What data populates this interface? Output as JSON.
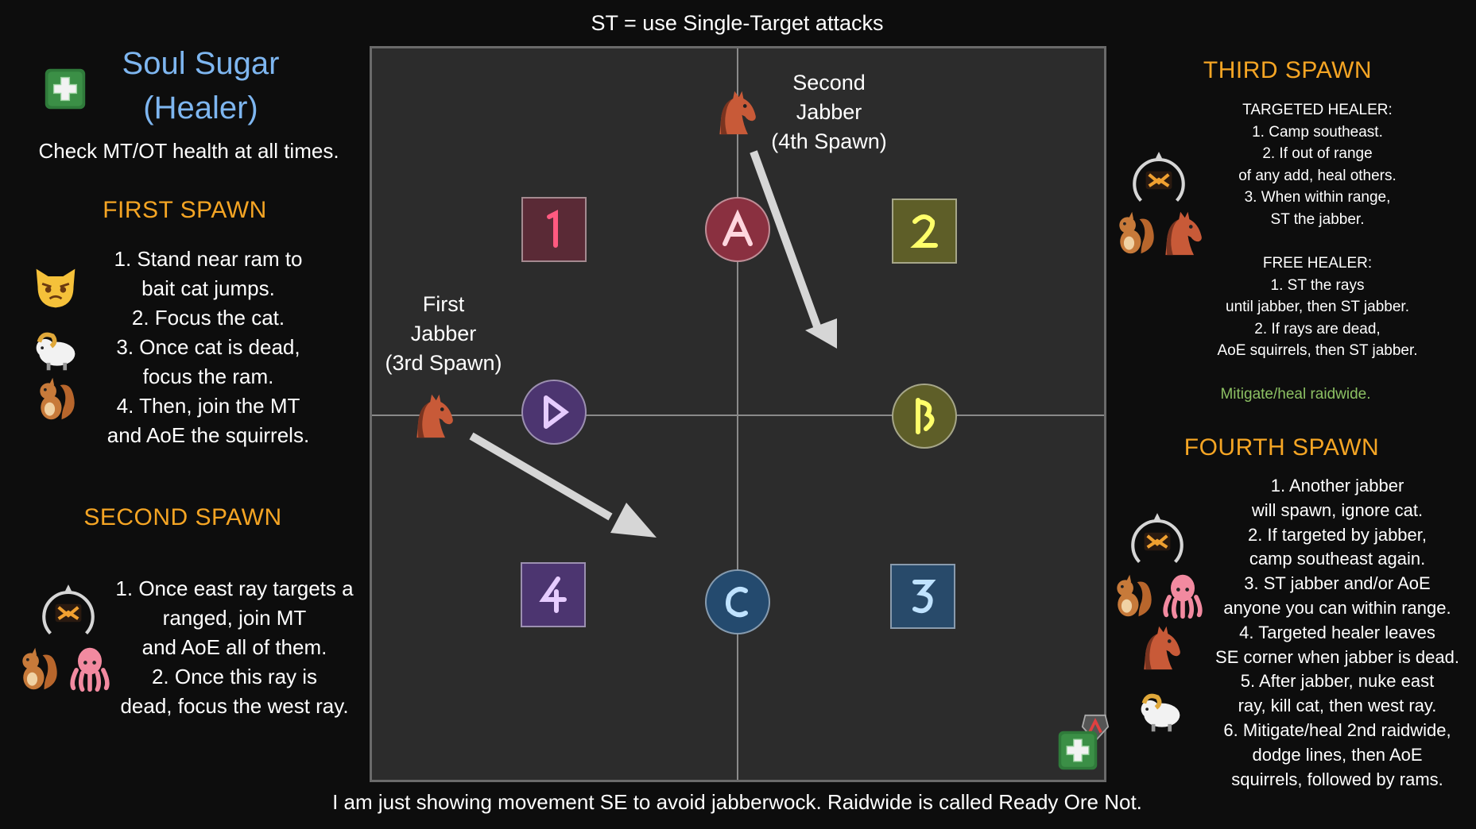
{
  "top_title": "ST = use Single-Target attacks",
  "bottom_note": "I am just showing movement SE to avoid jabberwock. Raidwide is called Ready Ore Not.",
  "role": {
    "name_line1": "Soul Sugar",
    "name_line2": "(Healer)",
    "subtitle": "Check MT/OT health at all times.",
    "icon": "healer-plus-icon",
    "color": "#7eb6f0"
  },
  "first_spawn": {
    "heading": "FIRST SPAWN",
    "lines": [
      "1. Stand near ram to",
      "bait cat jumps.",
      "2. Focus the cat.",
      "3. Once cat is dead,",
      "focus the ram.",
      "4. Then, join the MT",
      "and AoE the squirrels."
    ],
    "icons": [
      "cat-icon",
      "ram-icon",
      "squirrel-icon"
    ]
  },
  "second_spawn": {
    "heading": "SECOND SPAWN",
    "lines": [
      "1. Once east ray targets a",
      "ranged, join MT",
      "and AoE all of them.",
      "2. Once this ray is",
      "dead, focus the west ray."
    ],
    "icons": [
      "ray-icon",
      "squirrel-icon",
      "octopus-icon"
    ]
  },
  "third_spawn": {
    "heading": "THIRD SPAWN",
    "targeted_heading": "TARGETED HEALER:",
    "targeted_lines": [
      "1. Camp southeast.",
      "2. If out of range",
      "of any add, heal others.",
      "3. When within range,",
      "ST the jabber."
    ],
    "free_heading": "FREE HEALER:",
    "free_lines": [
      "1. ST the rays",
      "until jabber, then ST jabber.",
      "2. If rays are dead,",
      "AoE squirrels, then ST jabber."
    ],
    "note": "Mitigate/heal raidwide.",
    "icons": [
      "ray-icon",
      "squirrel-icon",
      "horse-icon"
    ]
  },
  "fourth_spawn": {
    "heading": "FOURTH SPAWN",
    "lines": [
      "1. Another jabber",
      "will spawn, ignore cat.",
      "2. If targeted by jabber,",
      "camp southeast again.",
      "3. ST jabber and/or AoE",
      "anyone you can within range.",
      "4. Targeted healer leaves",
      "SE corner when jabber is dead.",
      "5. After jabber, nuke east",
      "ray, kill cat, then west ray.",
      "6. Mitigate/heal 2nd raidwide,",
      "dodge lines, then AoE",
      "squirrels, followed by rams."
    ],
    "icons": [
      "ray-icon",
      "squirrel-icon",
      "octopus-icon",
      "horse-icon",
      "ram-icon"
    ]
  },
  "map": {
    "first_jabber": [
      "First",
      "Jabber",
      "(3rd Spawn)"
    ],
    "second_jabber": [
      "Second",
      "Jabber",
      "(4th Spawn)"
    ],
    "waymarks": [
      {
        "id": "1",
        "shape": "square",
        "color": "#d9385c"
      },
      {
        "id": "A",
        "shape": "circle",
        "color": "#d9385c"
      },
      {
        "id": "2",
        "shape": "square",
        "color": "#e2e23a"
      },
      {
        "id": "D",
        "shape": "circle",
        "color": "#b07ee8"
      },
      {
        "id": "B",
        "shape": "circle",
        "color": "#e2e23a"
      },
      {
        "id": "4",
        "shape": "square",
        "color": "#b07ee8"
      },
      {
        "id": "C",
        "shape": "circle",
        "color": "#5aa9f0"
      },
      {
        "id": "3",
        "shape": "square",
        "color": "#5aa9f0"
      }
    ],
    "player_icon": "healer-plus-icon",
    "target_icon": "target-marker-icon"
  }
}
